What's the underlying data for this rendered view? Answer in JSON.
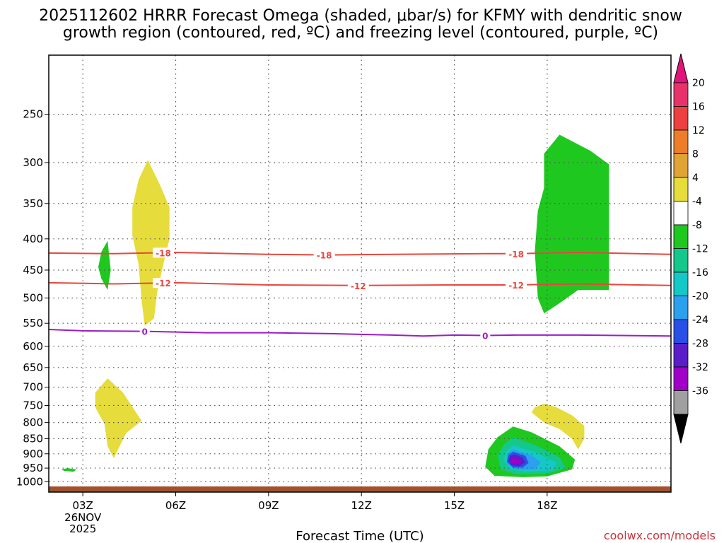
{
  "header": {
    "title_line1": "2025112602 HRRR Forecast Omega (shaded, μbar/s) for KFMY with dendritic snow",
    "title_line2": "growth region (contoured, red, ºC) and freezing level (contoured, purple, ºC)"
  },
  "footer": {
    "xlabel": "Forecast Time (UTC)",
    "credit": "coolwx.com/models"
  },
  "chart_data": {
    "type": "heatmap",
    "title": "2025112602 HRRR Forecast Omega (shaded, μbar/s) for KFMY with dendritic snow growth region (contoured, red, ºC) and freezing level (contoured, purple, ºC)",
    "xlabel": "Forecast Time (UTC)",
    "ylabel": "",
    "x_range_hours": [
      1.9,
      22.0
    ],
    "y_range_hpa": [
      1040,
      200
    ],
    "y_scale": "log",
    "grid": true,
    "x_ticks": [
      {
        "hour": 3,
        "label": "03Z",
        "sublabels": [
          "26NOV",
          "2025"
        ]
      },
      {
        "hour": 6,
        "label": "06Z",
        "sublabels": []
      },
      {
        "hour": 9,
        "label": "09Z",
        "sublabels": []
      },
      {
        "hour": 12,
        "label": "12Z",
        "sublabels": []
      },
      {
        "hour": 15,
        "label": "15Z",
        "sublabels": []
      },
      {
        "hour": 18,
        "label": "18Z",
        "sublabels": []
      }
    ],
    "y_ticks": [
      250,
      300,
      350,
      400,
      450,
      500,
      550,
      600,
      650,
      700,
      750,
      800,
      850,
      900,
      950,
      1000
    ],
    "colorbar": {
      "units": "μbar/s",
      "levels": [
        "20",
        "16",
        "12",
        "8",
        "4",
        "-4",
        "-8",
        "-12",
        "-16",
        "-20",
        "-24",
        "-28",
        "-32",
        "-36"
      ],
      "colors": [
        "#e8336a",
        "#ee4040",
        "#ee7d2a",
        "#e0a435",
        "#e6dc3c",
        "#ffffff",
        "#1fc81f",
        "#14c88c",
        "#14c8c8",
        "#2aa0ee",
        "#2850e6",
        "#5a1ec8",
        "#a000c8",
        "#a0a0a0"
      ],
      "top_arrow_color": "#e0147a",
      "bottom_arrow_color": "#000000"
    },
    "contours": [
      {
        "name": "-18",
        "color": "#e8473c",
        "label_hours": [
          5.6,
          10.8,
          17.0
        ],
        "points": [
          [
            1.9,
            422
          ],
          [
            4,
            423
          ],
          [
            6,
            421
          ],
          [
            9,
            424
          ],
          [
            11,
            425
          ],
          [
            13,
            424
          ],
          [
            16,
            423
          ],
          [
            17,
            423
          ],
          [
            19,
            421
          ],
          [
            22,
            424
          ]
        ]
      },
      {
        "name": "-12",
        "color": "#e8473c",
        "label_hours": [
          5.6,
          11.9,
          17.0
        ],
        "points": [
          [
            1.9,
            472
          ],
          [
            4,
            474
          ],
          [
            6,
            472
          ],
          [
            9,
            476
          ],
          [
            12,
            477
          ],
          [
            15,
            476
          ],
          [
            17,
            476
          ],
          [
            19,
            474
          ],
          [
            22,
            477
          ]
        ]
      },
      {
        "name": "0",
        "color": "#9b1cc8",
        "label_hours": [
          5.0,
          16.0
        ],
        "points": [
          [
            1.9,
            563
          ],
          [
            3,
            566
          ],
          [
            5,
            567
          ],
          [
            7,
            570
          ],
          [
            9,
            570
          ],
          [
            11,
            572
          ],
          [
            13,
            575
          ],
          [
            14,
            577
          ],
          [
            15,
            575
          ],
          [
            16,
            576
          ],
          [
            17,
            575
          ],
          [
            19,
            575
          ],
          [
            22,
            577
          ]
        ]
      }
    ],
    "shaded_regions": [
      {
        "value_range": "4 to 8",
        "color": "#e6dc3c",
        "points": [
          [
            5.1,
            297
          ],
          [
            5.5,
            327
          ],
          [
            5.8,
            355
          ],
          [
            5.8,
            400
          ],
          [
            5.6,
            440
          ],
          [
            5.4,
            490
          ],
          [
            5.3,
            540
          ],
          [
            5.0,
            555
          ],
          [
            4.9,
            505
          ],
          [
            4.8,
            440
          ],
          [
            4.6,
            395
          ],
          [
            4.6,
            355
          ],
          [
            4.8,
            320
          ]
        ]
      },
      {
        "value_range": "4 to 8",
        "color": "#e6dc3c",
        "points": [
          [
            3.8,
            677
          ],
          [
            4.3,
            715
          ],
          [
            4.9,
            795
          ],
          [
            4.4,
            832
          ],
          [
            4.0,
            915
          ],
          [
            3.8,
            875
          ],
          [
            3.7,
            805
          ],
          [
            3.4,
            755
          ],
          [
            3.4,
            715
          ]
        ]
      },
      {
        "value_range": "4 to 8",
        "color": "#e6dc3c",
        "points": [
          [
            17.9,
            745
          ],
          [
            18.3,
            755
          ],
          [
            18.8,
            778
          ],
          [
            19.2,
            810
          ],
          [
            19.2,
            850
          ],
          [
            19.0,
            885
          ],
          [
            18.8,
            850
          ],
          [
            18.4,
            820
          ],
          [
            17.9,
            800
          ],
          [
            17.5,
            770
          ],
          [
            17.6,
            755
          ]
        ]
      },
      {
        "value_range": "-4 to -8",
        "color": "#1fc81f",
        "points": [
          [
            3.8,
            403
          ],
          [
            3.9,
            450
          ],
          [
            3.8,
            485
          ],
          [
            3.6,
            465
          ],
          [
            3.5,
            445
          ],
          [
            3.6,
            420
          ]
        ]
      },
      {
        "value_range": "-4 to -8",
        "color": "#1fc81f",
        "points": [
          [
            2.5,
            950
          ],
          [
            2.8,
            955
          ],
          [
            2.7,
            963
          ],
          [
            2.4,
            960
          ],
          [
            2.3,
            955
          ]
        ]
      },
      {
        "value_range": "-4 to -8",
        "color": "#1fc81f",
        "points": [
          [
            18.4,
            270
          ],
          [
            19.4,
            287
          ],
          [
            20.0,
            302
          ],
          [
            20.0,
            485
          ],
          [
            19.0,
            485
          ],
          [
            18.4,
            510
          ],
          [
            17.9,
            530
          ],
          [
            17.7,
            500
          ],
          [
            17.6,
            420
          ],
          [
            17.7,
            360
          ],
          [
            17.9,
            330
          ],
          [
            17.9,
            290
          ]
        ]
      },
      {
        "value_range": "-4 to -8",
        "color": "#1fc81f",
        "points": [
          [
            16.9,
            812
          ],
          [
            17.5,
            830
          ],
          [
            18.4,
            875
          ],
          [
            18.9,
            920
          ],
          [
            18.8,
            955
          ],
          [
            18.0,
            980
          ],
          [
            17.2,
            983
          ],
          [
            16.3,
            978
          ],
          [
            16.0,
            945
          ],
          [
            16.1,
            885
          ],
          [
            16.4,
            845
          ]
        ]
      },
      {
        "value_range": "-8 to -12",
        "color": "#14c88c",
        "points": [
          [
            16.9,
            845
          ],
          [
            17.6,
            870
          ],
          [
            18.4,
            912
          ],
          [
            18.6,
            950
          ],
          [
            18.0,
            970
          ],
          [
            17.0,
            972
          ],
          [
            16.5,
            955
          ],
          [
            16.4,
            905
          ],
          [
            16.6,
            870
          ]
        ]
      },
      {
        "value_range": "-12 to -16",
        "color": "#14c8c8",
        "points": [
          [
            16.9,
            872
          ],
          [
            17.6,
            895
          ],
          [
            18.3,
            930
          ],
          [
            18.2,
            958
          ],
          [
            17.4,
            963
          ],
          [
            16.8,
            955
          ],
          [
            16.6,
            920
          ],
          [
            16.7,
            890
          ]
        ]
      },
      {
        "value_range": "-16 to -20",
        "color": "#2aa0ee",
        "points": [
          [
            16.9,
            885
          ],
          [
            17.5,
            905
          ],
          [
            17.8,
            930
          ],
          [
            17.6,
            955
          ],
          [
            17.0,
            955
          ],
          [
            16.7,
            935
          ],
          [
            16.7,
            902
          ]
        ]
      },
      {
        "value_range": "-20 to -24",
        "color": "#2850e6",
        "points": [
          [
            16.9,
            893
          ],
          [
            17.3,
            907
          ],
          [
            17.4,
            932
          ],
          [
            17.2,
            948
          ],
          [
            16.9,
            948
          ],
          [
            16.7,
            928
          ],
          [
            16.75,
            905
          ]
        ]
      },
      {
        "value_range": "-24 to -28",
        "color": "#5a1ec8",
        "points": [
          [
            16.95,
            902
          ],
          [
            17.2,
            912
          ],
          [
            17.3,
            930
          ],
          [
            17.1,
            943
          ],
          [
            16.85,
            940
          ],
          [
            16.75,
            922
          ],
          [
            16.8,
            908
          ]
        ]
      },
      {
        "value_range": "-28 to -32",
        "color": "#a000c8",
        "points": [
          [
            16.9,
            914
          ],
          [
            17.1,
            920
          ],
          [
            17.15,
            930
          ],
          [
            17.0,
            936
          ],
          [
            16.85,
            932
          ],
          [
            16.85,
            920
          ]
        ]
      }
    ],
    "surface": {
      "color": "#a0522d",
      "min_pressure_hpa": 1018
    }
  }
}
